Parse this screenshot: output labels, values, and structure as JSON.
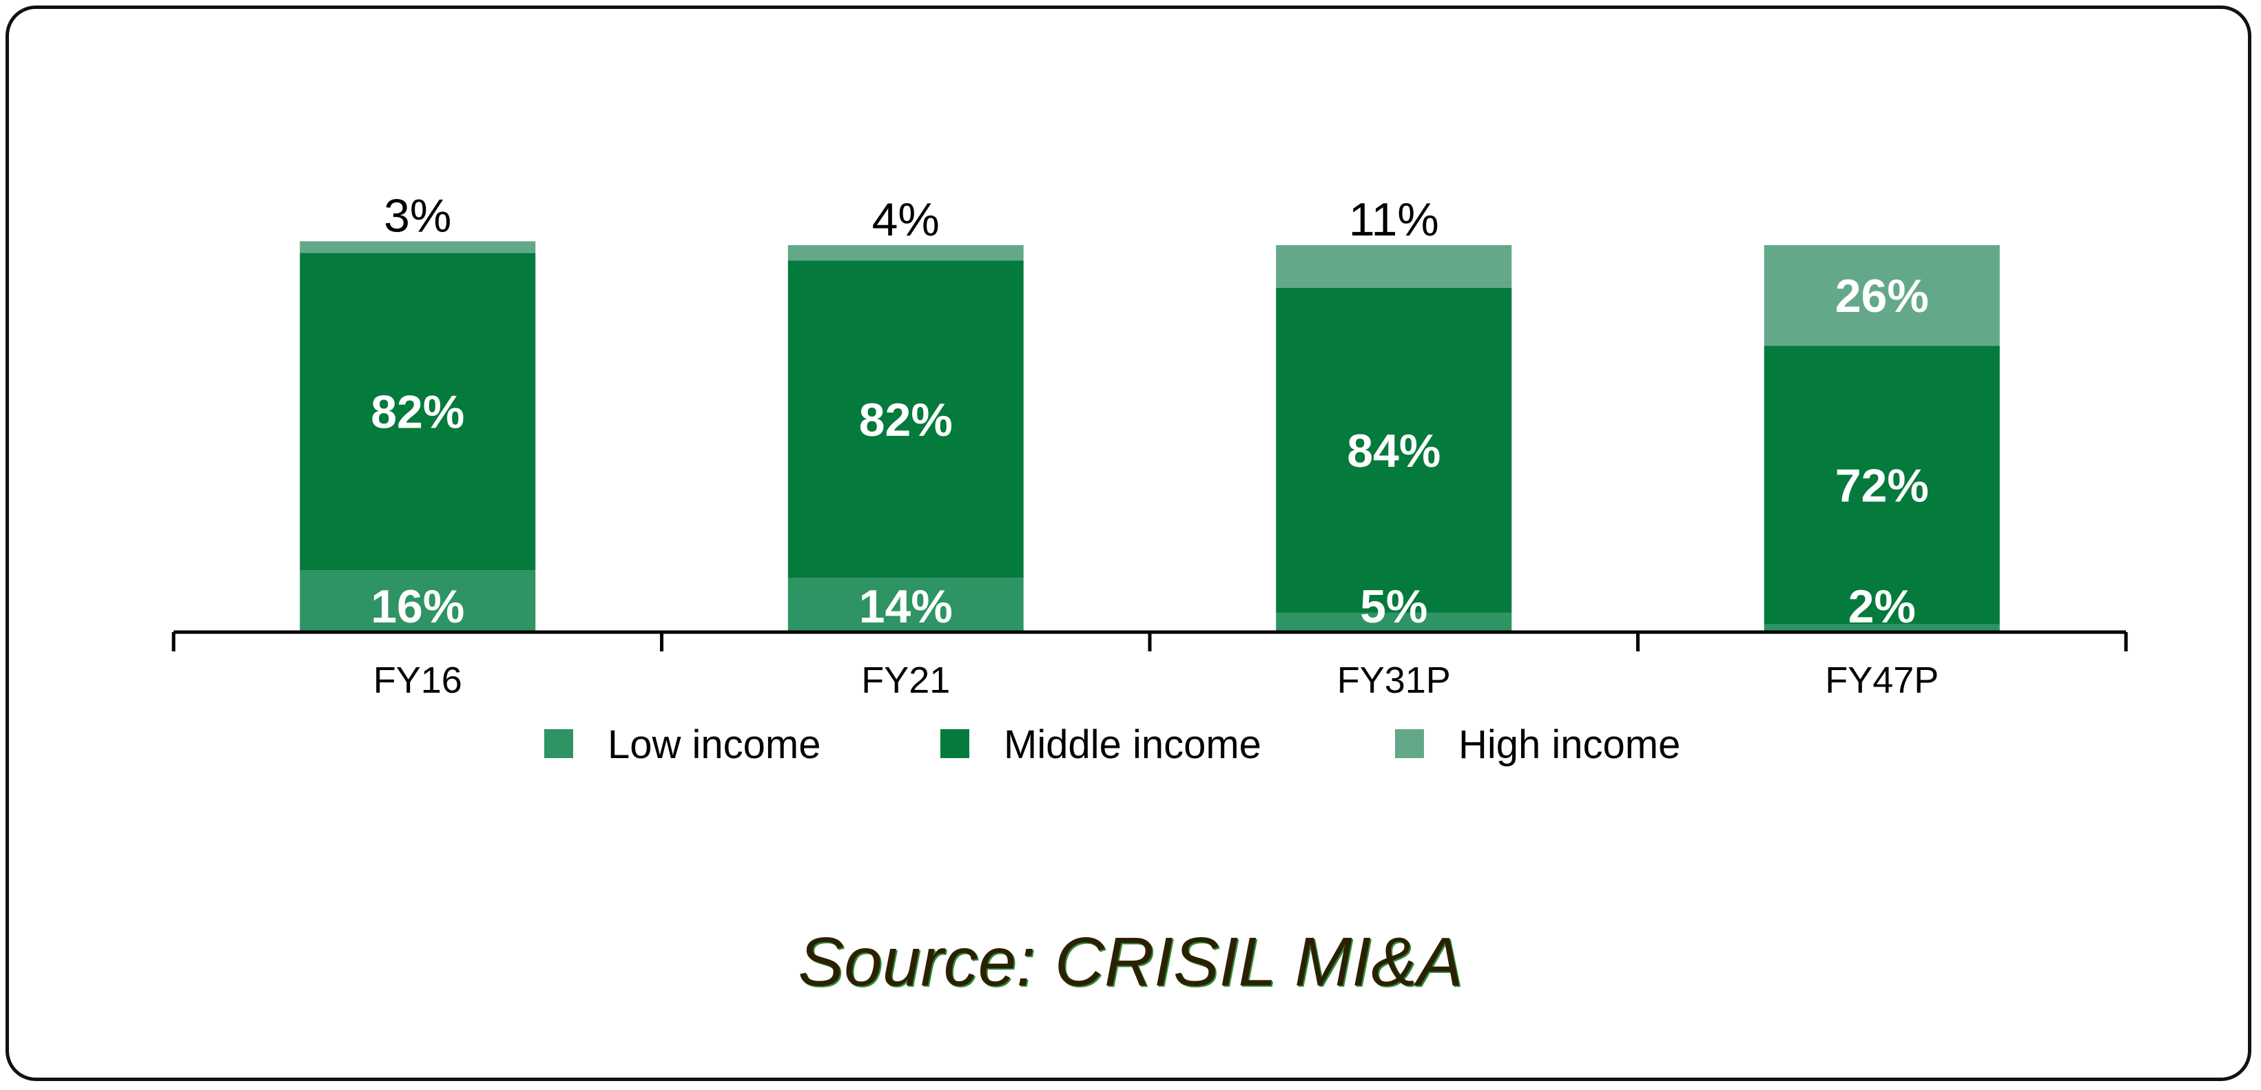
{
  "chart_data": {
    "type": "bar",
    "stacked": true,
    "categories": [
      "FY16",
      "FY21",
      "FY31P",
      "FY47P"
    ],
    "series": [
      {
        "name": "Low income",
        "values": [
          16,
          14,
          5,
          2
        ],
        "labels": [
          "16%",
          "14%",
          "5%",
          "2%"
        ],
        "color": "#2e9463"
      },
      {
        "name": "Middle income",
        "values": [
          82,
          82,
          84,
          72
        ],
        "labels": [
          "82%",
          "82%",
          "84%",
          "72%"
        ],
        "color": "#047a3c"
      },
      {
        "name": "High income",
        "values": [
          3,
          4,
          11,
          26
        ],
        "labels": [
          "3%",
          "4%",
          "11%",
          "26%"
        ],
        "color": "#64a88a"
      }
    ],
    "ylim": [
      0,
      100
    ],
    "grid": false,
    "legend_position": "bottom",
    "title": "",
    "xlabel": "",
    "ylabel": ""
  },
  "source": "Source: CRISIL MI&A"
}
